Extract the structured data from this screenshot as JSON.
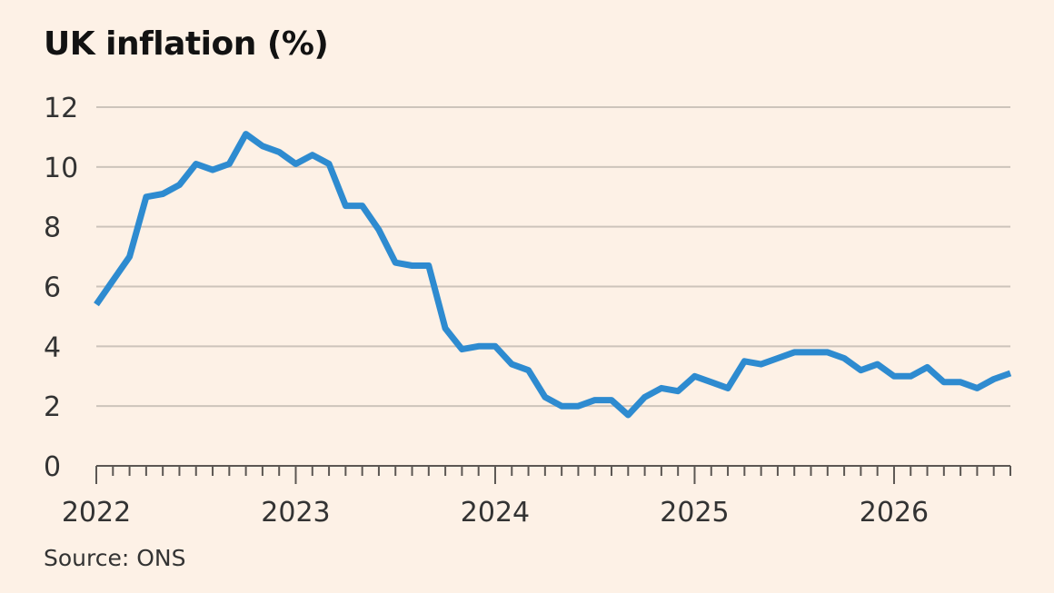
{
  "title": "UK inflation (%)",
  "source": "Source: ONS",
  "colors": {
    "background": "#fdf1e6",
    "line": "#2e8bd0",
    "grid": "#cdc4bb",
    "axis": "#5c5753",
    "text": "#333333"
  },
  "chart_data": {
    "type": "line",
    "title": "UK inflation (%)",
    "xlabel": "",
    "ylabel": "",
    "ylim": [
      0,
      12
    ],
    "yticks": [
      0,
      2,
      4,
      6,
      8,
      10,
      12
    ],
    "xlim": [
      "2022-01",
      "2026-08"
    ],
    "xtick_labels": [
      "2022",
      "2023",
      "2024",
      "2025",
      "2026"
    ],
    "grid": true,
    "legend": "none",
    "series": [
      {
        "x": [
          "2022-01",
          "2022-02",
          "2022-03",
          "2022-04",
          "2022-05",
          "2022-06",
          "2022-07",
          "2022-08",
          "2022-09",
          "2022-10",
          "2022-11",
          "2022-12",
          "2023-01",
          "2023-02",
          "2023-03",
          "2023-04",
          "2023-05",
          "2023-06",
          "2023-07",
          "2023-08",
          "2023-09",
          "2023-10",
          "2023-11",
          "2023-12",
          "2024-01",
          "2024-02",
          "2024-03",
          "2024-04",
          "2024-05",
          "2024-06",
          "2024-07",
          "2024-08",
          "2024-09",
          "2024-10",
          "2024-11",
          "2024-12",
          "2025-01",
          "2025-02",
          "2025-03",
          "2025-04",
          "2025-05",
          "2025-06",
          "2025-07",
          "2025-08",
          "2025-09",
          "2025-10",
          "2025-11",
          "2025-12",
          "2026-01",
          "2026-02",
          "2026-03",
          "2026-04",
          "2026-05",
          "2026-06",
          "2026-07",
          "2026-08"
        ],
        "values": [
          5.4,
          6.2,
          7.0,
          9.0,
          9.1,
          9.4,
          10.1,
          9.9,
          10.1,
          11.1,
          10.7,
          10.5,
          10.1,
          10.4,
          10.1,
          8.7,
          8.7,
          7.9,
          6.8,
          6.7,
          6.7,
          4.6,
          3.9,
          4.0,
          4.0,
          3.4,
          3.2,
          2.3,
          2.0,
          2.0,
          2.2,
          2.2,
          1.7,
          2.3,
          2.6,
          2.5,
          3.0,
          2.8,
          2.6,
          3.5,
          3.4,
          3.6,
          3.8,
          3.8,
          3.8,
          3.6,
          3.2,
          3.4,
          3.0,
          3.0,
          3.3,
          2.8,
          2.8,
          2.6,
          2.9,
          3.1
        ]
      }
    ]
  }
}
